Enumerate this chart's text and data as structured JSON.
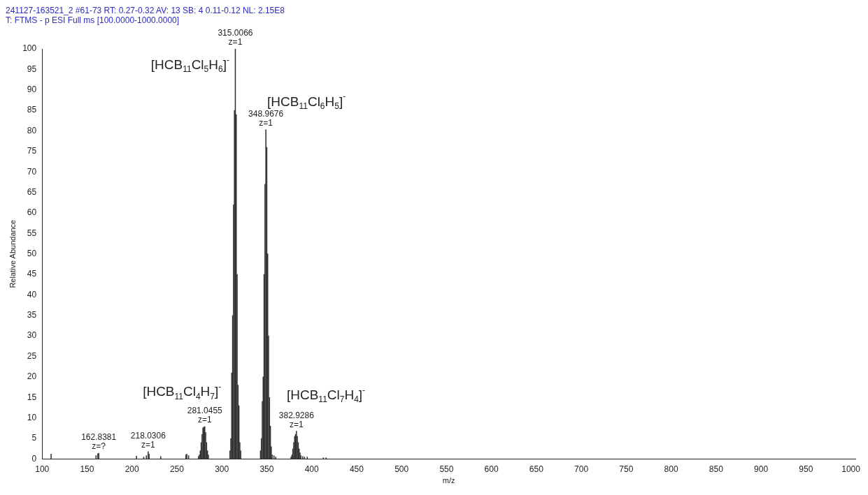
{
  "chart_data": {
    "type": "bar",
    "title": "241127-163521_2 #61-73  RT: 0.27-0.32  AV: 13  SB: 4 0.11-0.12  NL: 2.15E8",
    "subtitle": "T: FTMS - p ESI Full ms [100.0000-1000.0000]",
    "xlabel": "m/z",
    "ylabel": "Relative Abundance",
    "color": "#333333",
    "x": [
      110,
      160,
      162,
      163,
      205,
      213,
      216,
      218,
      219,
      232,
      260,
      261,
      263,
      274,
      275,
      276,
      277,
      278,
      279,
      280,
      281,
      282,
      283,
      284,
      285,
      309,
      310,
      311,
      312,
      313,
      314,
      315,
      316,
      317,
      318,
      319,
      320,
      321,
      343,
      344,
      345,
      346,
      347,
      348,
      349,
      350,
      351,
      352,
      353,
      354,
      355,
      356,
      358,
      360,
      377,
      378,
      379,
      380,
      381,
      382,
      383,
      384,
      385,
      386,
      387,
      388,
      390,
      392,
      395,
      413,
      416
    ],
    "values": [
      1.2,
      0.8,
      1.3,
      1.4,
      0.7,
      0.5,
      0.8,
      1.8,
      1.2,
      0.6,
      1,
      1.2,
      0.8,
      0.6,
      1,
      2,
      4,
      6,
      7.6,
      7.8,
      7.9,
      6.5,
      4,
      2,
      1,
      2,
      5,
      21,
      35,
      62,
      85,
      100,
      84,
      45,
      18,
      13,
      4,
      2,
      2,
      5,
      14,
      20,
      45,
      67,
      80.3,
      76,
      50,
      30,
      15,
      8,
      3,
      1,
      0.8,
      0.5,
      0.5,
      1,
      2.5,
      4,
      5.5,
      6,
      6.8,
      5.5,
      4,
      2.5,
      1.5,
      0.8,
      0.6,
      0.5,
      0.5,
      0.3,
      0.3
    ],
    "annotations": [
      "[HCB$_{11}$Cl$_{5}$H$_{6}$]$^{-}$",
      "[HCB$_{11}$Cl$_{6}$H$_{5}$]$^{-}$",
      "[HCB$_{11}$Cl$_{4}$H$_{7}$]$^{-}$",
      "[HCB$_{11}$Cl$_{7}$H$_{4}$]$^{-}$",
      {
        "text": "162.8381\nz=?",
        "x": 163,
        "y": 1.4
      },
      {
        "text": "218.0306\nz=1",
        "x": 218,
        "y": 1.8
      },
      {
        "text": "281.0455\nz=1",
        "x": 281,
        "y": 7.9
      },
      {
        "text": "315.0066\nz=1",
        "x": 315,
        "y": 100
      },
      {
        "text": "348.9676\nz=1",
        "x": 349,
        "y": 80.3
      },
      {
        "text": "382.9286\nz=1",
        "x": 383,
        "y": 6.8
      }
    ],
    "xlim": [
      100,
      1005
    ],
    "xticks": [
      100,
      150,
      200,
      250,
      300,
      350,
      400,
      450,
      500,
      550,
      600,
      650,
      700,
      750,
      800,
      850,
      900,
      950,
      1000
    ],
    "ylim": [
      0,
      100
    ],
    "yticks": [
      0,
      5,
      10,
      15,
      20,
      25,
      30,
      35,
      40,
      45,
      50,
      55,
      60,
      65,
      70,
      75,
      80,
      85,
      90,
      95,
      100
    ],
    "grid": false,
    "legend": false
  }
}
